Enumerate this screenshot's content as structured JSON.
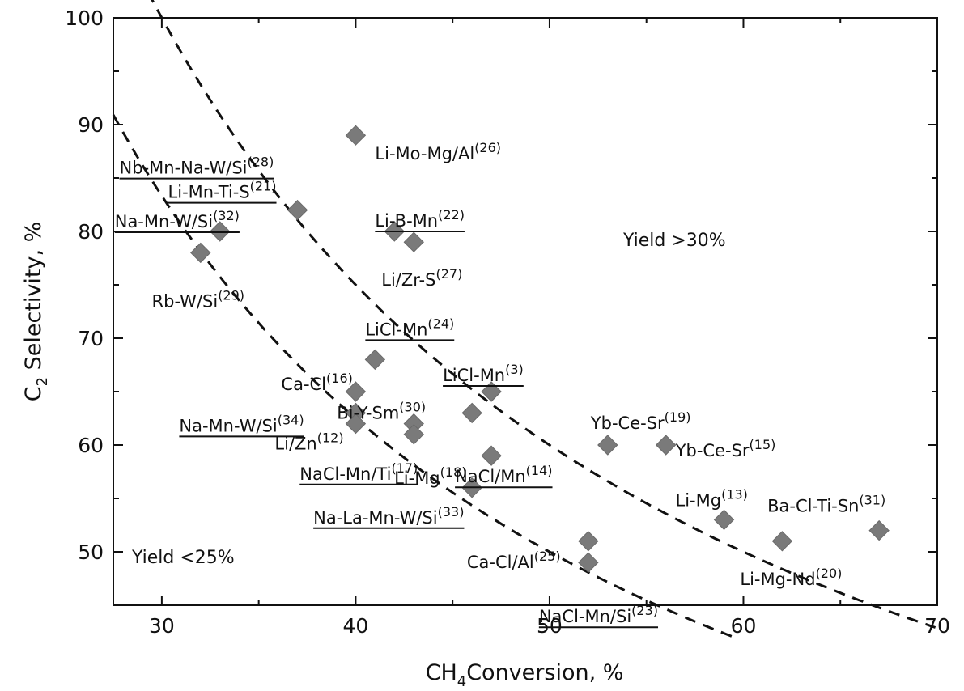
{
  "chart_data": {
    "type": "scatter",
    "xlabel": "CH",
    "xlabel_sub": "4",
    "xlabel_rest": "Conversion, %",
    "ylabel": "C",
    "ylabel_sub": "2",
    "ylabel_rest": " Selectivity, %",
    "xlim": [
      27.5,
      70
    ],
    "ylim": [
      45,
      100
    ],
    "x_ticks": [
      30,
      40,
      50,
      60,
      70
    ],
    "y_ticks": [
      50,
      60,
      70,
      80,
      90,
      100
    ],
    "x_minor_ticks": [
      35,
      45,
      55,
      65
    ],
    "y_minor_ticks": [
      55,
      65,
      75,
      85,
      95
    ],
    "grid": false,
    "points": [
      {
        "x": 40,
        "y": 89,
        "label": "Li-Mo-Mg/Al",
        "ref": "(26)",
        "underline": false
      },
      {
        "x": 32,
        "y": 78,
        "label": "Rb-W/Si",
        "ref": "(29)",
        "underline": false
      },
      {
        "x": 33,
        "y": 80,
        "label": "Na-Mn-W/Si",
        "ref": "(32)",
        "underline": true
      },
      {
        "x": 37,
        "y": 82,
        "label": "Nb-Mn-Na-W/Si",
        "ref": "(28)",
        "underline": true
      },
      {
        "x": 37,
        "y": 82,
        "label": "Li-Mn-Ti-S",
        "ref": "(21)",
        "underline": true
      },
      {
        "x": 42,
        "y": 80,
        "label": "Li-B-Mn",
        "ref": "(22)",
        "underline": true
      },
      {
        "x": 43,
        "y": 79,
        "label": "Li/Zr-S",
        "ref": "(27)",
        "underline": false
      },
      {
        "x": 41,
        "y": 68,
        "label": "LiCl-Mn",
        "ref": "(24)",
        "underline": true
      },
      {
        "x": 40,
        "y": 65,
        "label": "Ca-Cl",
        "ref": "(16)",
        "underline": false
      },
      {
        "x": 47,
        "y": 65,
        "label": "LiCl-Mn",
        "ref": "(3)",
        "underline": true
      },
      {
        "x": 40,
        "y": 63,
        "label": "Na-Mn-W/Si",
        "ref": "(34)",
        "underline": true
      },
      {
        "x": 43,
        "y": 62,
        "label": "Bi-Y-Sm",
        "ref": "(30)",
        "underline": false
      },
      {
        "x": 46,
        "y": 63,
        "label": "",
        "ref": "",
        "underline": false
      },
      {
        "x": 40,
        "y": 62,
        "label": "Li/Zn",
        "ref": "(12)",
        "underline": false
      },
      {
        "x": 43,
        "y": 61,
        "label": "NaCl-Mn/Ti",
        "ref": "(17)",
        "underline": true
      },
      {
        "x": 47,
        "y": 59,
        "label": "Li-Mg",
        "ref": "(18)",
        "underline": false
      },
      {
        "x": 53,
        "y": 60,
        "label": "Yb-Ce-Sr",
        "ref": "(19)",
        "underline": false
      },
      {
        "x": 56,
        "y": 60,
        "label": "Yb-Ce-Sr",
        "ref": "(15)",
        "underline": false
      },
      {
        "x": 46,
        "y": 56,
        "label": "Na-La-Mn-W/Si",
        "ref": "(33)",
        "underline": true
      },
      {
        "x": 47,
        "y": 59,
        "label": "NaCl/Mn",
        "ref": "(14)",
        "underline": true
      },
      {
        "x": 52,
        "y": 51,
        "label": "Ca-Cl/Al",
        "ref": "(25)",
        "underline": false
      },
      {
        "x": 52,
        "y": 49,
        "label": "NaCl-Mn/Si",
        "ref": "(23)",
        "underline": true
      },
      {
        "x": 59,
        "y": 53,
        "label": "Li-Mg",
        "ref": "(13)",
        "underline": false
      },
      {
        "x": 62,
        "y": 51,
        "label": "Li-Mg-Nd",
        "ref": "(20)",
        "underline": false
      },
      {
        "x": 67,
        "y": 52,
        "label": "Ba-Cl-Ti-Sn",
        "ref": "(31)",
        "underline": false
      }
    ],
    "iso_yield_curves": [
      {
        "yield_percent": 25,
        "label": "Yield <25%"
      },
      {
        "yield_percent": 30,
        "label": "Yield >30%"
      }
    ]
  }
}
